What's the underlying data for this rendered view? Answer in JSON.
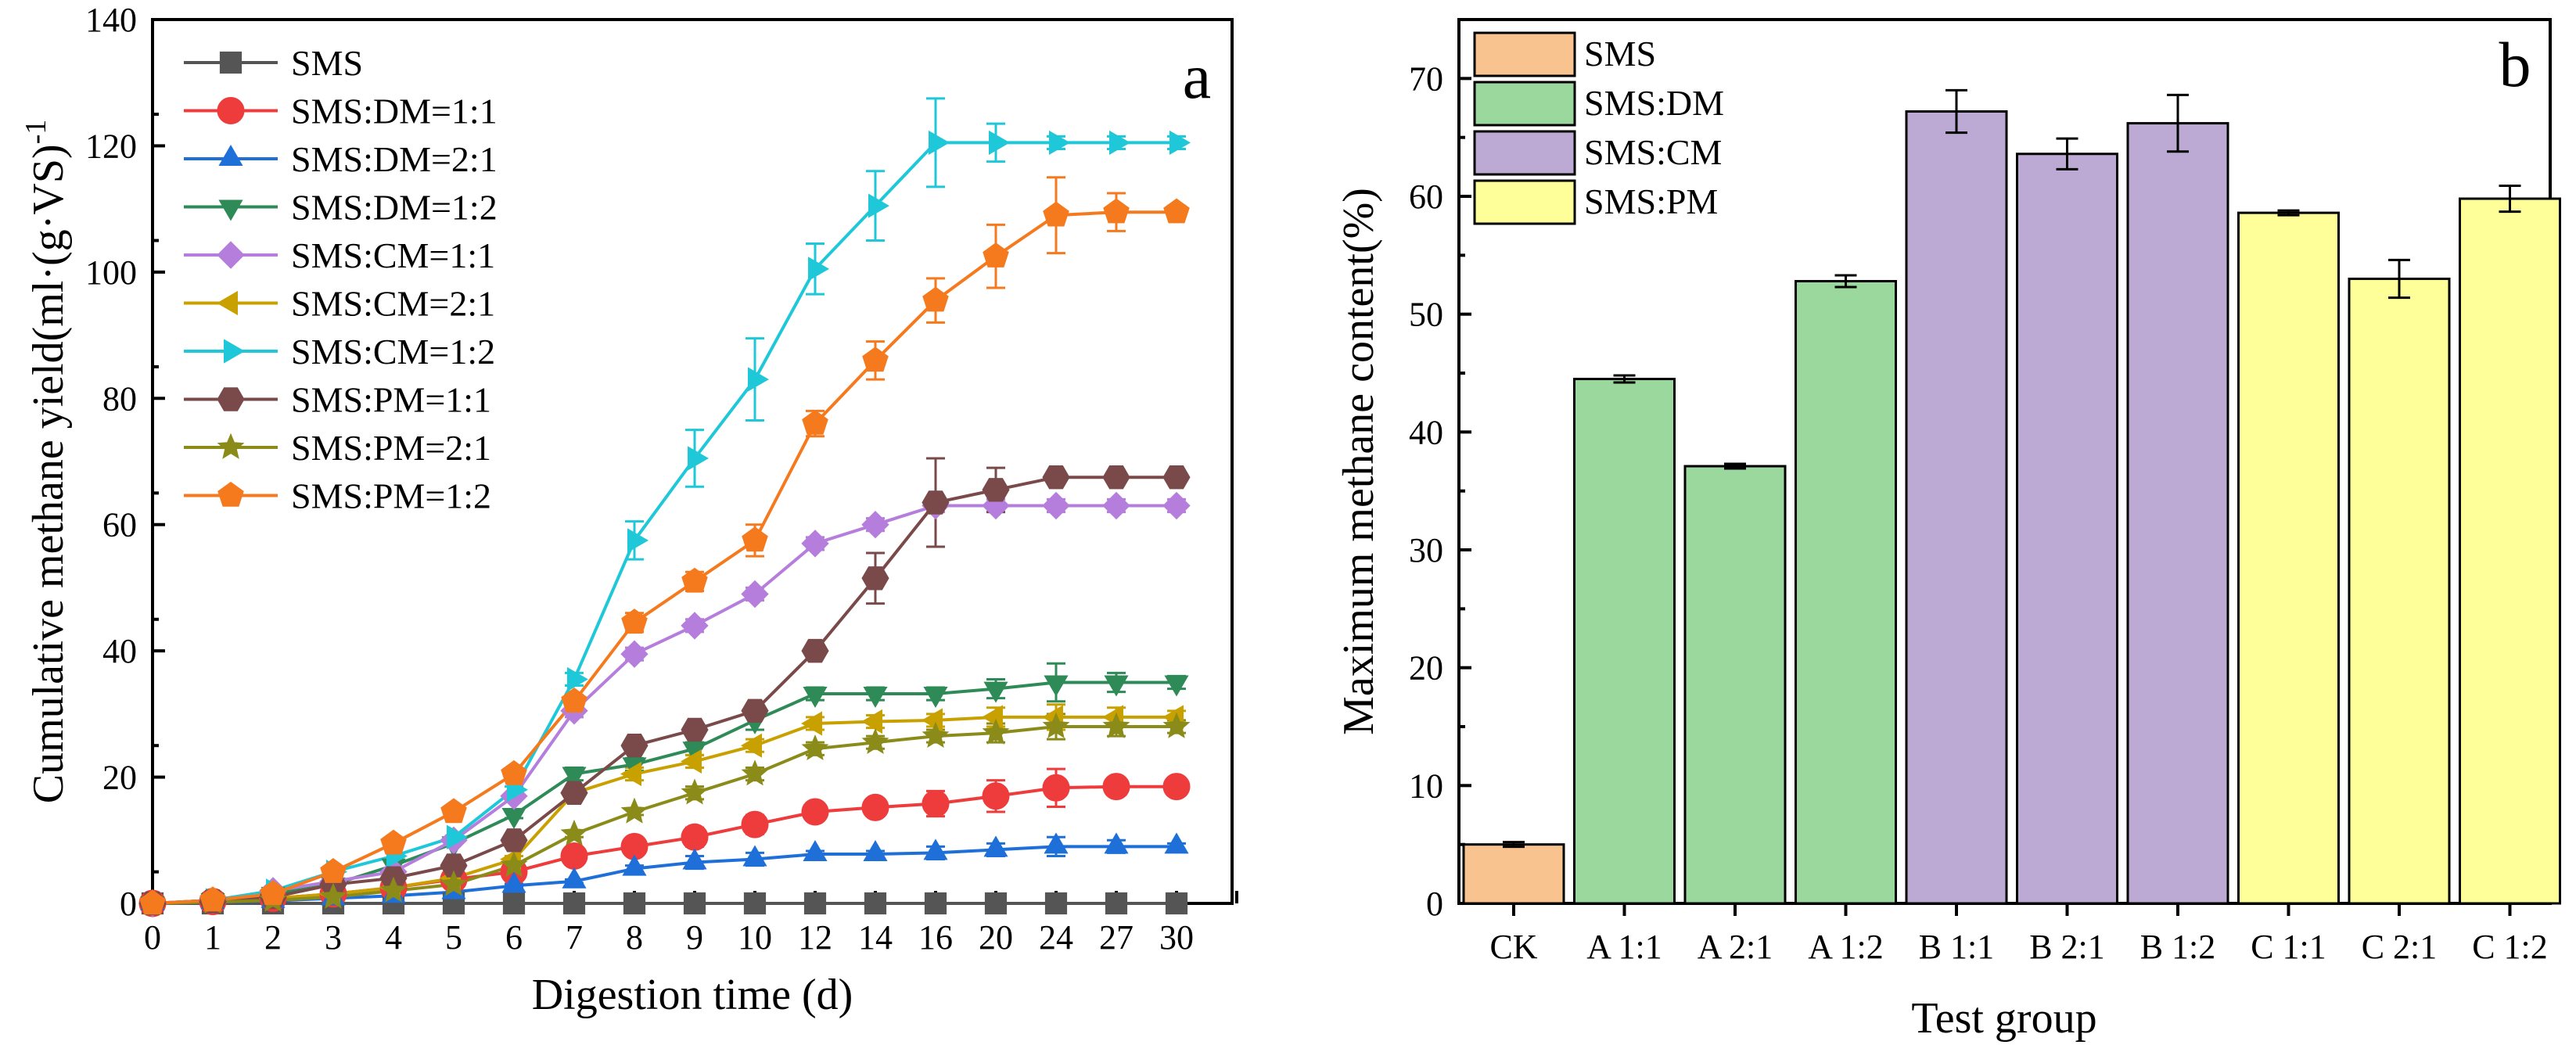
{
  "chart_data": [
    {
      "type": "line",
      "panel": "a",
      "xlabel": "Digestion time (d)",
      "ylabel": "Cumulative methane yield(ml·(g·VS)",
      "ylabel_sup": "-1",
      "x": [
        "0",
        "1",
        "2",
        "3",
        "4",
        "5",
        "6",
        "7",
        "8",
        "9",
        "10",
        "12",
        "14",
        "16",
        "20",
        "24",
        "27",
        "30"
      ],
      "ylim": [
        0,
        140
      ],
      "yticks": [
        "0",
        "20",
        "40",
        "60",
        "80",
        "100",
        "120",
        "140"
      ],
      "legend_position": "top-left",
      "series": [
        {
          "name": "SMS",
          "color": "#555555",
          "marker": "square",
          "values": [
            0,
            0,
            0,
            0,
            0,
            0,
            0,
            0,
            0,
            0,
            0,
            0,
            0,
            0,
            0,
            0,
            0,
            0
          ],
          "errors": [
            0,
            0,
            0,
            0,
            0,
            0,
            0,
            0,
            0,
            0,
            0,
            0,
            0,
            0,
            0,
            0,
            0,
            0
          ]
        },
        {
          "name": "SMS:DM=1:1",
          "color": "#ee3b3b",
          "marker": "circle",
          "values": [
            0,
            0.3,
            0.8,
            1.5,
            2.5,
            3.8,
            5.0,
            7.5,
            9.0,
            10.5,
            12.5,
            14.5,
            15.2,
            15.8,
            17.0,
            18.3,
            18.5,
            18.5
          ],
          "errors": [
            0,
            0,
            0,
            0,
            0,
            0,
            0.5,
            0.5,
            1.0,
            1.5,
            1.5,
            1.0,
            1.0,
            2.0,
            2.5,
            3.0,
            1.0,
            0.5
          ]
        },
        {
          "name": "SMS:DM=2:1",
          "color": "#1f6fd9",
          "marker": "triangle-up",
          "values": [
            0,
            0.2,
            0.4,
            0.8,
            1.2,
            1.8,
            2.8,
            3.5,
            5.5,
            6.5,
            7.0,
            7.8,
            7.8,
            8.0,
            8.5,
            9.0,
            9.0,
            9.0
          ],
          "errors": [
            0,
            0,
            0,
            0,
            0,
            0,
            0.3,
            0.3,
            0.5,
            1.0,
            1.0,
            0.5,
            0.5,
            1.0,
            1.0,
            1.5,
            1.0,
            0.5
          ]
        },
        {
          "name": "SMS:DM=1:2",
          "color": "#2e8b57",
          "marker": "triangle-down",
          "values": [
            0,
            0.5,
            1.5,
            3.0,
            6.0,
            9.5,
            14.0,
            20.5,
            22.0,
            24.5,
            29.0,
            33.2,
            33.2,
            33.2,
            34.0,
            35.0,
            35.0,
            35.0
          ],
          "errors": [
            0,
            0,
            0,
            0,
            0,
            0,
            0.5,
            1.0,
            1.0,
            1.0,
            1.5,
            1.0,
            1.0,
            1.0,
            1.5,
            3.0,
            1.5,
            1.0
          ]
        },
        {
          "name": "SMS:CM=1:1",
          "color": "#b57edc",
          "marker": "diamond",
          "values": [
            0,
            0.5,
            2.0,
            3.5,
            5.0,
            10.0,
            17.0,
            30.5,
            39.5,
            44.0,
            49.0,
            57.0,
            60.0,
            63.0,
            63.0,
            63.0,
            63.0,
            63.0
          ],
          "errors": [
            0,
            0,
            0,
            0,
            0,
            0,
            0.5,
            1.0,
            1.0,
            1.0,
            1.0,
            1.0,
            1.0,
            1.0,
            1.0,
            1.0,
            1.0,
            1.0
          ]
        },
        {
          "name": "SMS:CM=2:1",
          "color": "#c8a000",
          "marker": "triangle-left",
          "values": [
            0,
            0.3,
            0.8,
            1.5,
            2.5,
            4.0,
            7.0,
            17.5,
            20.5,
            22.5,
            25.0,
            28.5,
            28.8,
            29.0,
            29.5,
            29.5,
            29.5,
            29.5
          ],
          "errors": [
            0,
            0,
            0,
            0,
            0,
            0,
            0.5,
            1.0,
            1.0,
            1.0,
            1.0,
            1.0,
            1.0,
            1.0,
            1.5,
            2.0,
            1.5,
            1.0
          ]
        },
        {
          "name": "SMS:CM=1:2",
          "color": "#1ec8d8",
          "marker": "triangle-right",
          "values": [
            0,
            0.5,
            2.0,
            5.0,
            7.5,
            10.5,
            18.0,
            35.5,
            57.5,
            70.5,
            83.0,
            100.5,
            110.5,
            120.5,
            120.5,
            120.5,
            120.5,
            120.5
          ],
          "errors": [
            0,
            0,
            0,
            0,
            0,
            0,
            0.5,
            1.0,
            3.0,
            4.5,
            6.5,
            4.0,
            5.5,
            7.0,
            3.0,
            1.0,
            1.0,
            1.0
          ]
        },
        {
          "name": "SMS:PM=1:1",
          "color": "#7a4a4a",
          "marker": "hexagon",
          "values": [
            0,
            0.3,
            1.0,
            3.0,
            4.0,
            6.0,
            10.0,
            17.5,
            25.0,
            27.5,
            30.5,
            40.0,
            51.5,
            63.5,
            65.5,
            67.5,
            67.5,
            67.5
          ],
          "errors": [
            0,
            0,
            0,
            0,
            0,
            0,
            0.5,
            1.0,
            1.0,
            1.0,
            1.0,
            1.0,
            4.0,
            7.0,
            3.5,
            1.0,
            1.0,
            1.0
          ]
        },
        {
          "name": "SMS:PM=2:1",
          "color": "#8b8b1a",
          "marker": "star",
          "values": [
            0,
            0.2,
            0.5,
            1.0,
            2.0,
            3.0,
            6.0,
            11.0,
            14.5,
            17.5,
            20.5,
            24.5,
            25.5,
            26.5,
            27.0,
            28.0,
            28.0,
            28.0
          ],
          "errors": [
            0,
            0,
            0,
            0,
            0,
            0,
            0.3,
            0.5,
            0.5,
            1.0,
            1.0,
            1.0,
            1.0,
            1.0,
            1.5,
            2.0,
            1.5,
            1.0
          ]
        },
        {
          "name": "SMS:PM=1:2",
          "color": "#f57a1e",
          "marker": "pentagon",
          "values": [
            0,
            0.5,
            1.5,
            5.0,
            9.5,
            14.5,
            20.5,
            32.0,
            44.5,
            51.0,
            57.5,
            76.0,
            86.0,
            95.5,
            102.5,
            109.0,
            109.5,
            109.5
          ],
          "errors": [
            0,
            0,
            0,
            0,
            0,
            0,
            0.5,
            1.0,
            1.5,
            1.5,
            2.5,
            2.0,
            3.0,
            3.5,
            5.0,
            6.0,
            3.0,
            1.0
          ]
        }
      ]
    },
    {
      "type": "bar",
      "panel": "b",
      "xlabel": "Test group",
      "ylabel": "Maximum methane content(%)",
      "categories": [
        "CK",
        "A 1:1",
        "A 2:1",
        "A 1:2",
        "B 1:1",
        "B 2:1",
        "B 1:2",
        "C 1:1",
        "C 2:1",
        "C 1:2"
      ],
      "values": [
        5.0,
        44.5,
        37.1,
        52.8,
        67.2,
        63.6,
        66.2,
        58.6,
        53.0,
        59.8
      ],
      "errors": [
        0.2,
        0.3,
        0.2,
        0.5,
        1.8,
        1.3,
        2.4,
        0.2,
        1.6,
        1.1
      ],
      "bar_colors": [
        "#f9c390",
        "#9ad89d",
        "#9ad89d",
        "#9ad89d",
        "#bcaad4",
        "#bcaad4",
        "#bcaad4",
        "#ffff99",
        "#ffff99",
        "#ffff99"
      ],
      "ylim": [
        0,
        75
      ],
      "yticks": [
        "0",
        "10",
        "20",
        "30",
        "40",
        "50",
        "60",
        "70"
      ],
      "legend_position": "top-left",
      "legend": [
        {
          "name": "SMS",
          "color": "#f9c390"
        },
        {
          "name": "SMS:DM",
          "color": "#9ad89d"
        },
        {
          "name": "SMS:CM",
          "color": "#bcaad4"
        },
        {
          "name": "SMS:PM",
          "color": "#ffff99"
        }
      ]
    }
  ]
}
